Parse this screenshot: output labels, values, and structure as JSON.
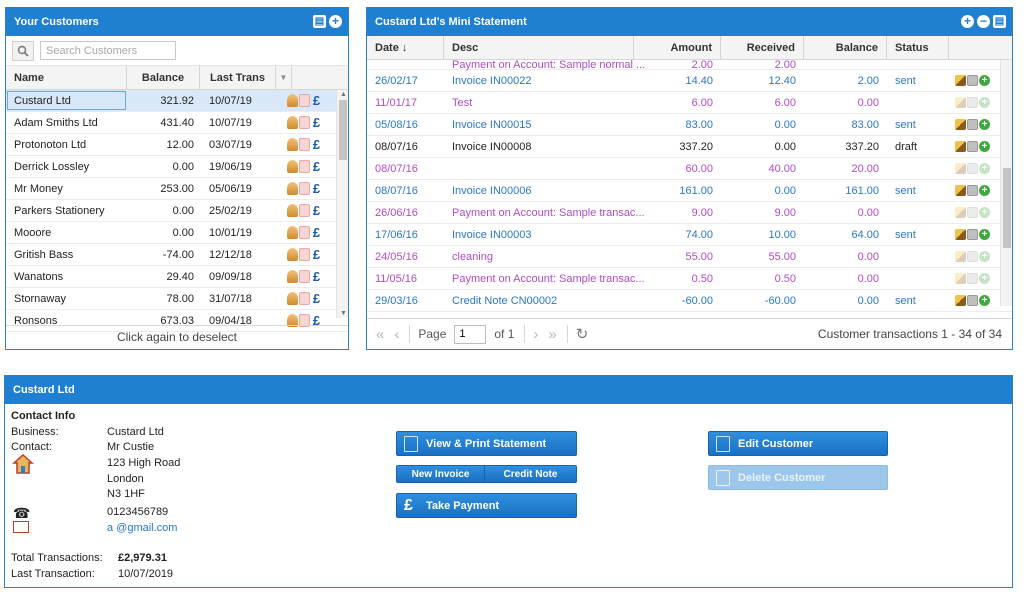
{
  "customers_panel": {
    "title": "Your Customers",
    "search_placeholder": "Search Customers",
    "columns": [
      "Name",
      "Balance",
      "Last Trans"
    ],
    "rows": [
      {
        "name": "Custard Ltd",
        "balance": "321.92",
        "last": "10/07/19",
        "selected": true
      },
      {
        "name": "Adam Smiths Ltd",
        "balance": "431.40",
        "last": "10/07/19"
      },
      {
        "name": "Protonoton Ltd",
        "balance": "12.00",
        "last": "03/07/19"
      },
      {
        "name": "Derrick Lossley",
        "balance": "0.00",
        "last": "19/06/19"
      },
      {
        "name": "Mr Money",
        "balance": "253.00",
        "last": "05/06/19"
      },
      {
        "name": "Parkers Stationery",
        "balance": "0.00",
        "last": "25/02/19"
      },
      {
        "name": "Mooore",
        "balance": "0.00",
        "last": "10/01/19"
      },
      {
        "name": "Gritish Bass",
        "balance": "-74.00",
        "last": "12/12/18"
      },
      {
        "name": "Wanatons",
        "balance": "29.40",
        "last": "09/09/18"
      },
      {
        "name": "Stornaway",
        "balance": "78.00",
        "last": "31/07/18"
      },
      {
        "name": "Ronsons",
        "balance": "673.03",
        "last": "09/04/18"
      }
    ],
    "footer": "Click again to deselect"
  },
  "statement_panel": {
    "title": "Custard Ltd's Mini Statement",
    "columns": [
      "Date ↓",
      "Desc",
      "Amount",
      "Received",
      "Balance",
      "Status"
    ],
    "partial_row": {
      "desc": "Payment on Account: Sample normal ...",
      "amount": "2.00",
      "received": "2.00",
      "color": "purple"
    },
    "rows": [
      {
        "date": "26/02/17",
        "desc": "Invoice IN00022",
        "amount": "14.40",
        "received": "12.40",
        "balance": "2.00",
        "status": "sent",
        "color": "blue"
      },
      {
        "date": "11/01/17",
        "desc": "Test",
        "amount": "6.00",
        "received": "6.00",
        "balance": "0.00",
        "status": "",
        "color": "purple"
      },
      {
        "date": "05/08/16",
        "desc": "Invoice IN00015",
        "amount": "83.00",
        "received": "0.00",
        "balance": "83.00",
        "status": "sent",
        "color": "blue"
      },
      {
        "date": "08/07/16",
        "desc": "Invoice IN00008",
        "amount": "337.20",
        "received": "0.00",
        "balance": "337.20",
        "status": "draft",
        "color": "black"
      },
      {
        "date": "08/07/16",
        "desc": "",
        "amount": "60.00",
        "received": "40.00",
        "balance": "20.00",
        "status": "",
        "color": "purple"
      },
      {
        "date": "08/07/16",
        "desc": "Invoice IN00006",
        "amount": "161.00",
        "received": "0.00",
        "balance": "161.00",
        "status": "sent",
        "color": "blue"
      },
      {
        "date": "26/06/16",
        "desc": "Payment on Account: Sample transac...",
        "amount": "9.00",
        "received": "9.00",
        "balance": "0.00",
        "status": "",
        "color": "purple"
      },
      {
        "date": "17/06/16",
        "desc": "Invoice IN00003",
        "amount": "74.00",
        "received": "10.00",
        "balance": "64.00",
        "status": "sent",
        "color": "blue"
      },
      {
        "date": "24/05/16",
        "desc": "cleaning",
        "amount": "55.00",
        "received": "55.00",
        "balance": "0.00",
        "status": "",
        "color": "purple"
      },
      {
        "date": "11/05/16",
        "desc": "Payment on Account: Sample transac...",
        "amount": "0.50",
        "received": "0.50",
        "balance": "0.00",
        "status": "",
        "color": "purple"
      },
      {
        "date": "29/03/16",
        "desc": "Credit Note CN00002",
        "amount": "-60.00",
        "received": "-60.00",
        "balance": "0.00",
        "status": "sent",
        "color": "blue"
      }
    ],
    "pager": {
      "page_label": "Page",
      "page_value": "1",
      "of_label": "of 1",
      "summary": "Customer transactions 1 - 34 of 34"
    }
  },
  "detail_panel": {
    "title": "Custard Ltd",
    "contact_heading": "Contact Info",
    "business_label": "Business:",
    "business": "Custard Ltd",
    "contact_label": "Contact:",
    "contact": "Mr Custie",
    "address": [
      "123 High Road",
      "London",
      "N3 1HF"
    ],
    "phone": "0123456789",
    "email": "a @gmail.com",
    "total_label": "Total Transactions:",
    "total": "£2,979.31",
    "last_label": "Last Transaction:",
    "last": "10/07/2019",
    "buttons": {
      "view_print": "View & Print Statement",
      "new_invoice": "New Invoice",
      "credit_note": "Credit Note",
      "take_payment": "Take Payment",
      "edit_customer": "Edit Customer",
      "delete_customer": "Delete Customer"
    }
  }
}
